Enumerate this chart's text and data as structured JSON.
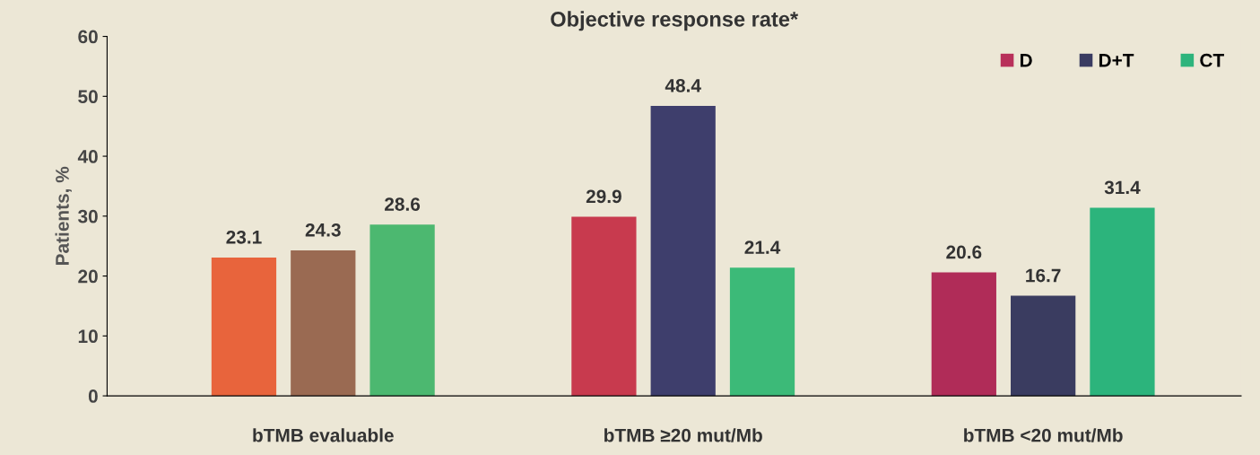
{
  "chart_data": {
    "type": "bar",
    "title": "Objective response rate*",
    "ylabel": "Patients, %",
    "categories": [
      "bTMB evaluable",
      "bTMB ≥20 mut/Mb",
      "bTMB <20 mut/Mb"
    ],
    "series": [
      {
        "name": "D",
        "color": "#b8305a",
        "colors": [
          "#e8643c",
          "#c83a4e",
          "#b02c58"
        ],
        "values": [
          23.1,
          29.9,
          20.6
        ]
      },
      {
        "name": "D+T",
        "color": "#3a3c62",
        "colors": [
          "#9a6a52",
          "#3e3e6c",
          "#3a3c60"
        ],
        "values": [
          24.3,
          48.4,
          16.7
        ]
      },
      {
        "name": "CT",
        "color": "#2eb47c",
        "colors": [
          "#4cb870",
          "#3cba78",
          "#2cb47c"
        ],
        "values": [
          28.6,
          21.4,
          31.4
        ]
      }
    ],
    "ylim": [
      0,
      60
    ],
    "yticks": [
      0,
      10,
      20,
      30,
      40,
      50,
      60
    ],
    "grid": false,
    "legend": "top right",
    "data_labels": true
  }
}
